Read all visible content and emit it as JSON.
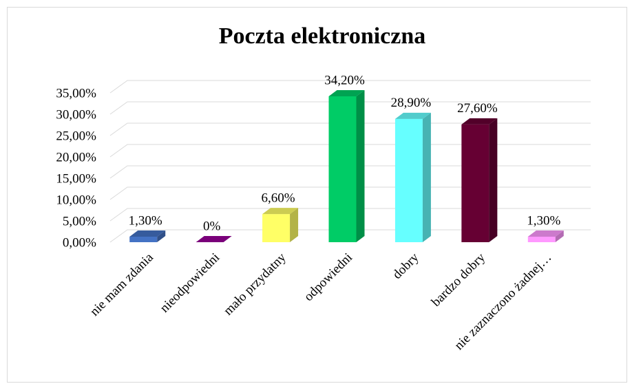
{
  "chart_data": {
    "type": "bar3d",
    "title": "Poczta elektroniczna",
    "categories": [
      "nie mam zdania",
      "nieodpowiedni",
      "mało przydatny",
      "odpowiedni",
      "dobry",
      "bardzo dobry",
      "nie zaznaczono żadnej…"
    ],
    "values": [
      1.3,
      0,
      6.6,
      34.2,
      28.9,
      27.6,
      1.3
    ],
    "value_labels": [
      "1,30%",
      "0%",
      "6,60%",
      "34,20%",
      "28,90%",
      "27,60%",
      "1,30%"
    ],
    "colors": [
      "#4472c4",
      "#990099",
      "#ffff66",
      "#00cc66",
      "#66ffff",
      "#660033",
      "#ff99ff"
    ],
    "ylim": [
      0,
      35
    ],
    "yticks": [
      {
        "value": 0,
        "label": "0,00%"
      },
      {
        "value": 5,
        "label": "5,00%"
      },
      {
        "value": 10,
        "label": "10,00%"
      },
      {
        "value": 15,
        "label": "15,00%"
      },
      {
        "value": 20,
        "label": "20,00%"
      },
      {
        "value": 25,
        "label": "25,00%"
      },
      {
        "value": 30,
        "label": "30,00%"
      },
      {
        "value": 35,
        "label": "35,00%"
      }
    ],
    "grid": true
  }
}
